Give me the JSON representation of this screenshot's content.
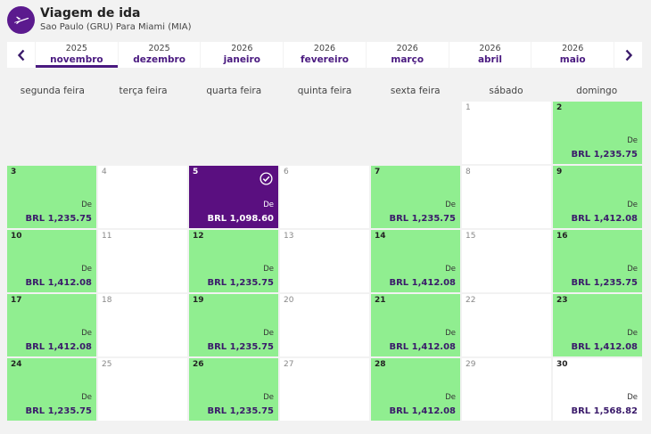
{
  "header": {
    "title": "Viagem de ida",
    "subtitle": "Sao Paulo (GRU) Para Miami (MIA)",
    "icon": "airplane-takeoff-icon"
  },
  "colors": {
    "brand": "#5b1a8e",
    "available": "#90ee90",
    "selected": "#5a0f80"
  },
  "months": [
    {
      "year": "2025",
      "name": "novembro",
      "active": true
    },
    {
      "year": "2025",
      "name": "dezembro"
    },
    {
      "year": "2026",
      "name": "janeiro"
    },
    {
      "year": "2026",
      "name": "fevereiro"
    },
    {
      "year": "2026",
      "name": "março"
    },
    {
      "year": "2026",
      "name": "abril"
    },
    {
      "year": "2026",
      "name": "maio"
    }
  ],
  "weekdays": [
    "segunda feira",
    "terça feira",
    "quarta feira",
    "quinta feira",
    "sexta feira",
    "sábado",
    "domingo"
  ],
  "calendar": {
    "first_day_offset": 5,
    "de_label": "De",
    "days": [
      {
        "day": "1"
      },
      {
        "day": "2",
        "price": "BRL 1,235.75",
        "green": true
      },
      {
        "day": "3",
        "price": "BRL 1,235.75",
        "green": true
      },
      {
        "day": "4"
      },
      {
        "day": "5",
        "price": "BRL 1,098.60",
        "selected": true
      },
      {
        "day": "6"
      },
      {
        "day": "7",
        "price": "BRL 1,235.75",
        "green": true
      },
      {
        "day": "8"
      },
      {
        "day": "9",
        "price": "BRL 1,412.08",
        "green": true
      },
      {
        "day": "10",
        "price": "BRL 1,412.08",
        "green": true
      },
      {
        "day": "11"
      },
      {
        "day": "12",
        "price": "BRL 1,235.75",
        "green": true
      },
      {
        "day": "13"
      },
      {
        "day": "14",
        "price": "BRL 1,412.08",
        "green": true
      },
      {
        "day": "15"
      },
      {
        "day": "16",
        "price": "BRL 1,235.75",
        "green": true
      },
      {
        "day": "17",
        "price": "BRL 1,412.08",
        "green": true
      },
      {
        "day": "18"
      },
      {
        "day": "19",
        "price": "BRL 1,235.75",
        "green": true
      },
      {
        "day": "20"
      },
      {
        "day": "21",
        "price": "BRL 1,412.08",
        "green": true
      },
      {
        "day": "22"
      },
      {
        "day": "23",
        "price": "BRL 1,412.08",
        "green": true
      },
      {
        "day": "24",
        "price": "BRL 1,235.75",
        "green": true
      },
      {
        "day": "25"
      },
      {
        "day": "26",
        "price": "BRL 1,235.75",
        "green": true
      },
      {
        "day": "27"
      },
      {
        "day": "28",
        "price": "BRL 1,412.08",
        "green": true
      },
      {
        "day": "29"
      },
      {
        "day": "30",
        "price": "BRL 1,568.82"
      }
    ]
  }
}
